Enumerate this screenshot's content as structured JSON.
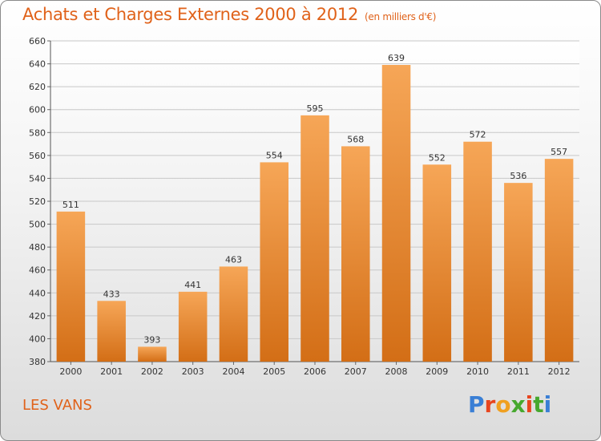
{
  "header": {
    "title": "Achats et Charges Externes 2000 à 2012",
    "subtitle": "(en milliers d'€)"
  },
  "footer": {
    "commune": "LES VANS",
    "logo_letters": [
      "P",
      "r",
      "o",
      "x",
      "i",
      "t",
      "i"
    ]
  },
  "colors": {
    "accent": "#e0621a",
    "bar_top": "#f6a657",
    "bar_bottom": "#d36e16",
    "logo": [
      "#3a7fd5",
      "#e8451e",
      "#f0a020",
      "#46a82e",
      "#e8451e",
      "#46a82e",
      "#3a7fd5"
    ]
  },
  "chart_data": {
    "type": "bar",
    "title": "Achats et Charges Externes 2000 à 2012",
    "subtitle": "(en milliers d'€)",
    "categories": [
      "2000",
      "2001",
      "2002",
      "2003",
      "2004",
      "2005",
      "2006",
      "2007",
      "2008",
      "2009",
      "2010",
      "2011",
      "2012"
    ],
    "values": [
      511,
      433,
      393,
      441,
      463,
      554,
      595,
      568,
      639,
      552,
      572,
      536,
      557
    ],
    "ylim": [
      380,
      660
    ],
    "yticks": [
      380,
      400,
      420,
      440,
      460,
      480,
      500,
      520,
      540,
      560,
      580,
      600,
      620,
      640,
      660
    ],
    "grid": true,
    "xlabel": "",
    "ylabel": ""
  }
}
